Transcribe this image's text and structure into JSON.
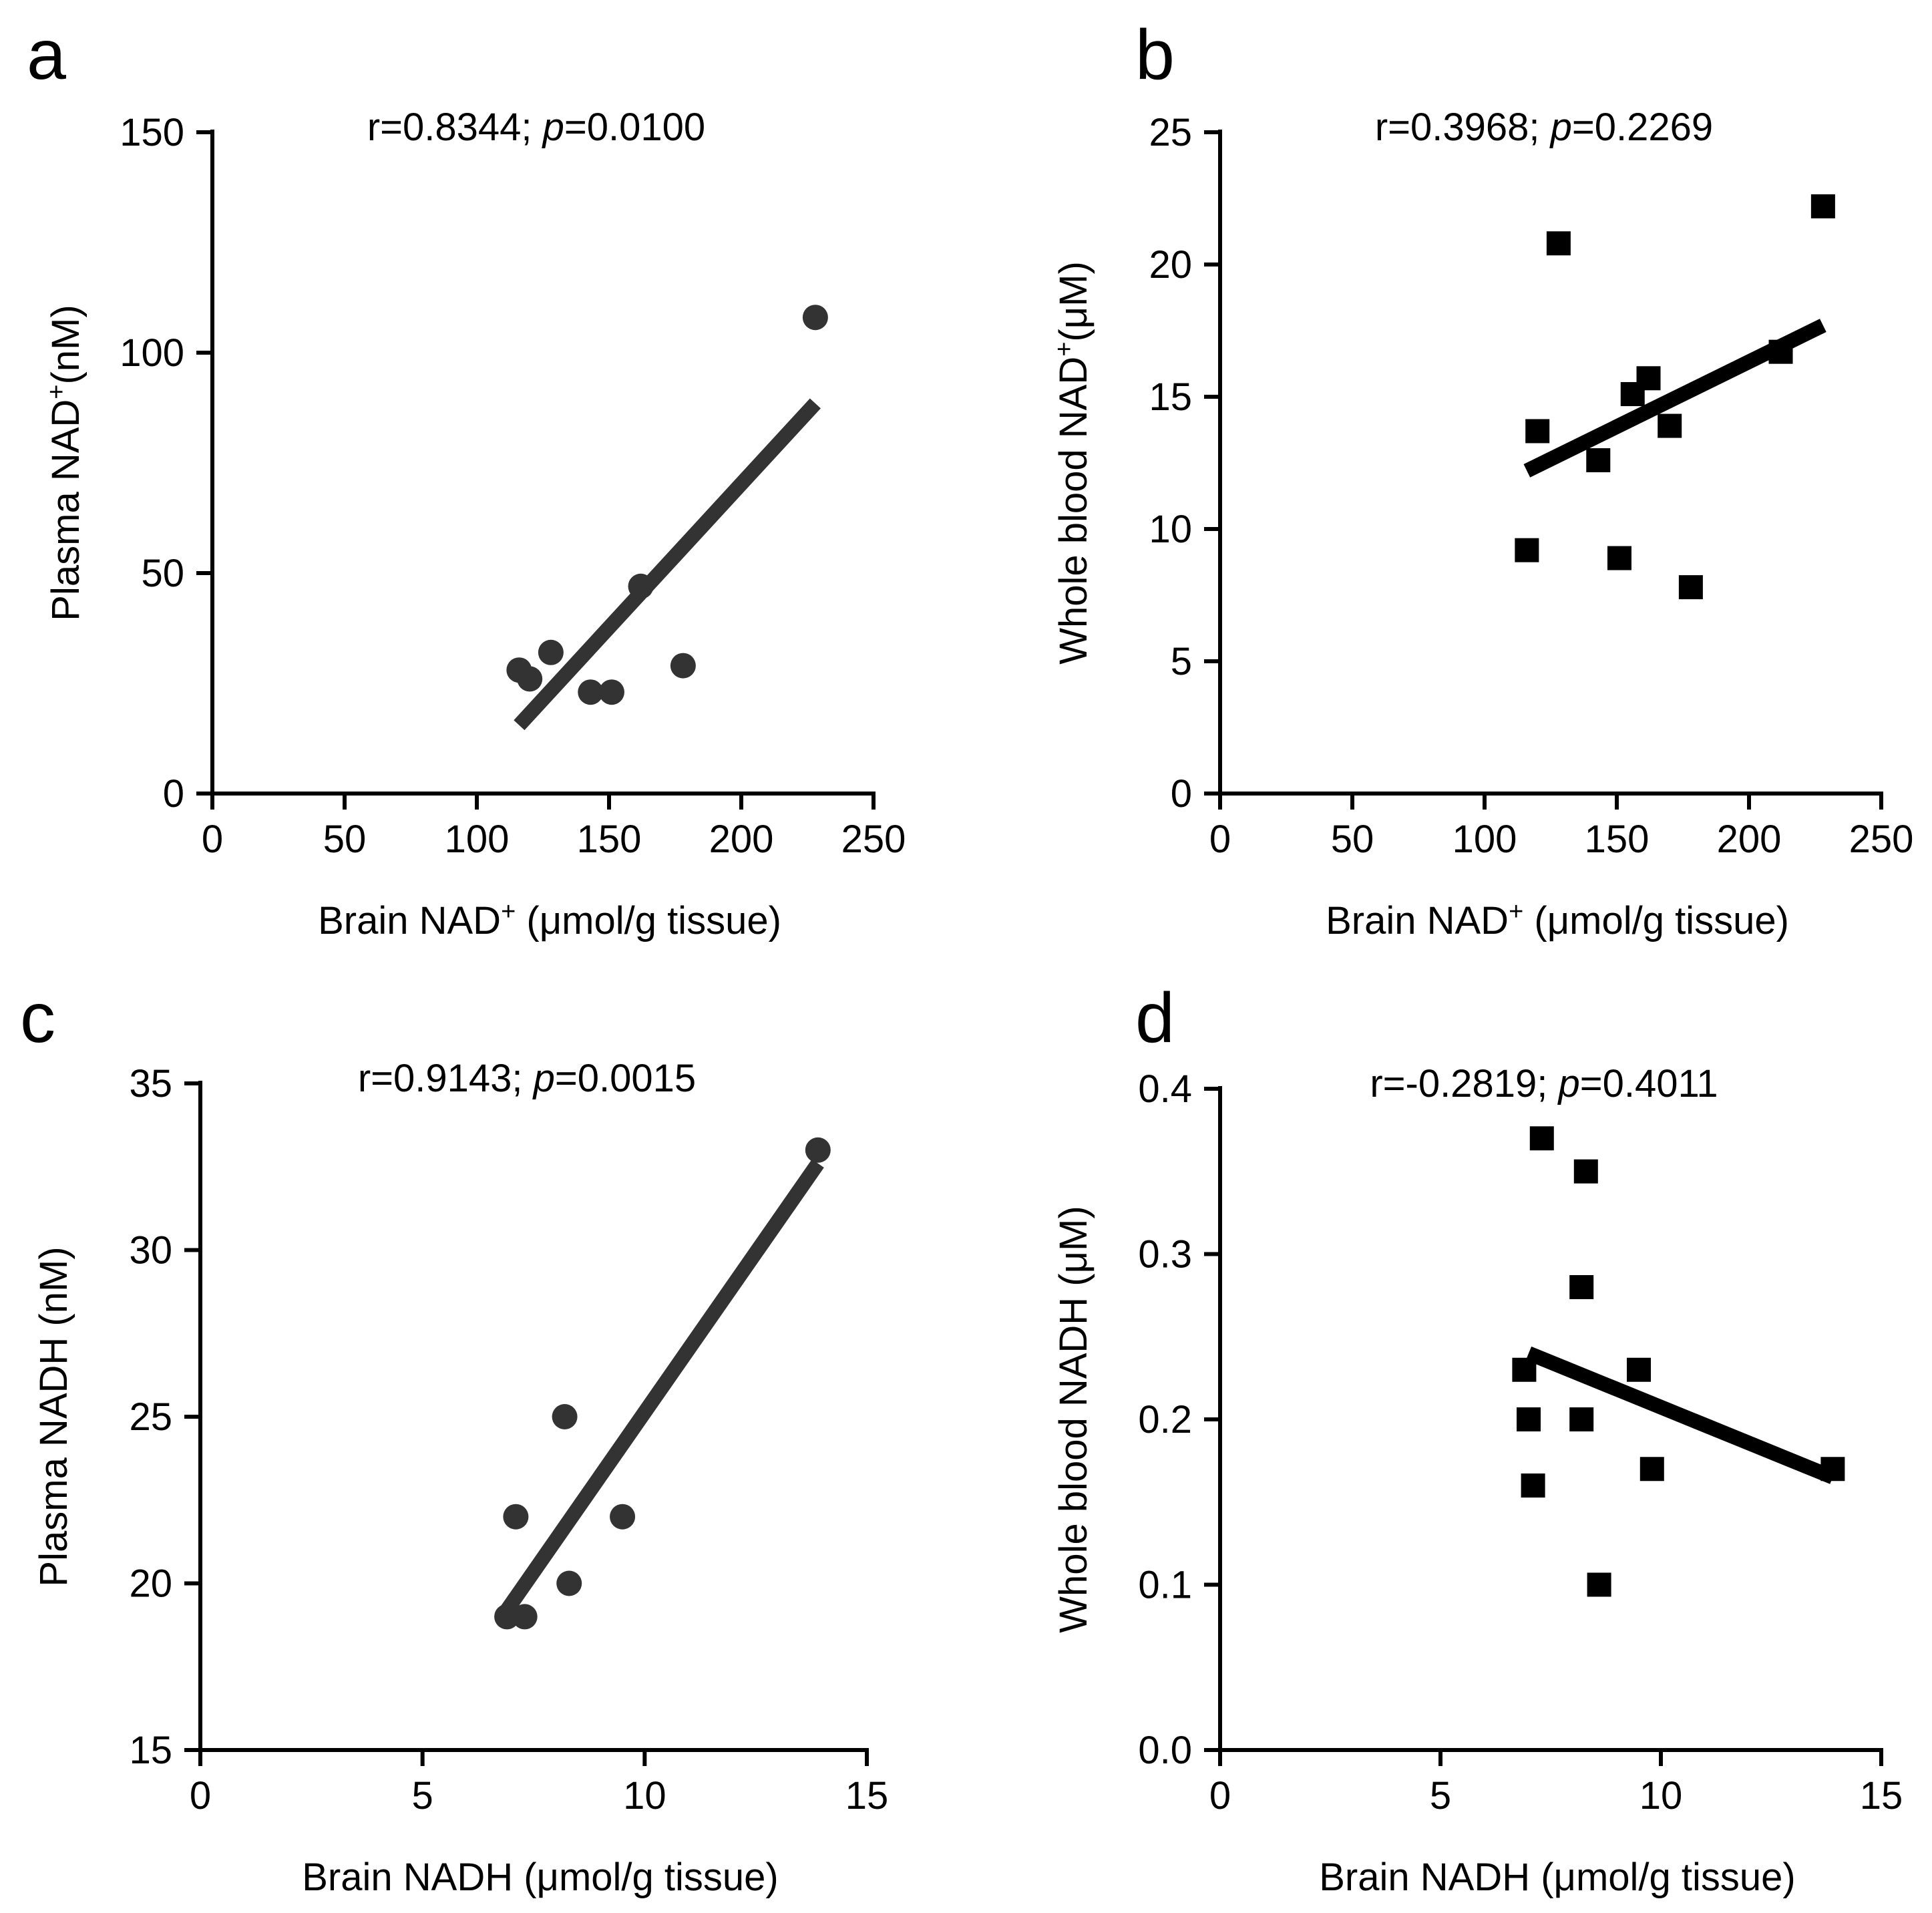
{
  "chart_data": [
    {
      "panel": "a",
      "type": "scatter",
      "marker": "circle",
      "color": "#333333",
      "stat": {
        "prefix": "r=0.8344; ",
        "p_label": "p",
        "suffix": "=0.0100"
      },
      "xlabel": {
        "pre": "Brain NAD",
        "sup": "+",
        "post": " (μmol/g tissue)"
      },
      "ylabel": {
        "pre": "Plasma NAD",
        "sup": "+",
        "post": "(nM)"
      },
      "xlim": [
        0,
        250
      ],
      "ylim": [
        0,
        150
      ],
      "xticks": [
        "0",
        "50",
        "100",
        "150",
        "200",
        "250"
      ],
      "yticks": [
        "0",
        "50",
        "100",
        "150"
      ],
      "points": [
        [
          116,
          28
        ],
        [
          120,
          26
        ],
        [
          128,
          32
        ],
        [
          143,
          23
        ],
        [
          151,
          23
        ],
        [
          162,
          47
        ],
        [
          178,
          29
        ],
        [
          228,
          108
        ]
      ],
      "fit": [
        [
          116,
          15.5
        ],
        [
          228,
          88.5
        ]
      ]
    },
    {
      "panel": "b",
      "type": "scatter",
      "marker": "square",
      "color": "#000000",
      "stat": {
        "prefix": "r=0.3968; ",
        "p_label": "p",
        "suffix": "=0.2269"
      },
      "xlabel": {
        "pre": "Brain NAD",
        "sup": "+",
        "post": " (μmol/g tissue)"
      },
      "ylabel": {
        "pre": "Whole blood NAD",
        "sup": "+",
        "post": "(μM)"
      },
      "xlim": [
        0,
        250
      ],
      "ylim": [
        0,
        25
      ],
      "xticks": [
        "0",
        "50",
        "100",
        "150",
        "200",
        "250"
      ],
      "yticks": [
        "0",
        "5",
        "10",
        "15",
        "20",
        "25"
      ],
      "points": [
        [
          116,
          9.2
        ],
        [
          120,
          13.7
        ],
        [
          128,
          20.8
        ],
        [
          143,
          12.6
        ],
        [
          151,
          8.9
        ],
        [
          156,
          15.1
        ],
        [
          162,
          15.7
        ],
        [
          170,
          13.9
        ],
        [
          178,
          7.8
        ],
        [
          212,
          16.7
        ],
        [
          228,
          22.2
        ]
      ],
      "fit": [
        [
          116,
          12.2
        ],
        [
          228,
          17.7
        ]
      ]
    },
    {
      "panel": "c",
      "type": "scatter",
      "marker": "circle",
      "color": "#333333",
      "stat": {
        "prefix": "r=0.9143; ",
        "p_label": "p",
        "suffix": "=0.0015"
      },
      "xlabel": {
        "pre": "Brain NADH (μmol/g tissue)",
        "sup": "",
        "post": ""
      },
      "ylabel": {
        "pre": "Plasma NADH (nM)",
        "sup": "",
        "post": ""
      },
      "xlim": [
        0,
        15
      ],
      "ylim": [
        15,
        35
      ],
      "xticks": [
        "0",
        "5",
        "10",
        "15"
      ],
      "yticks": [
        "15",
        "20",
        "25",
        "30",
        "35"
      ],
      "points": [
        [
          6.9,
          19
        ],
        [
          7.1,
          22
        ],
        [
          7.3,
          19
        ],
        [
          8.2,
          25
        ],
        [
          8.3,
          20
        ],
        [
          9.5,
          22
        ],
        [
          13.9,
          33
        ]
      ],
      "fit": [
        [
          6.9,
          19.2
        ],
        [
          13.9,
          32.6
        ]
      ]
    },
    {
      "panel": "d",
      "type": "scatter",
      "marker": "square",
      "color": "#000000",
      "stat": {
        "prefix": "r=-0.2819; ",
        "p_label": "p",
        "suffix": "=0.4011"
      },
      "xlabel": {
        "pre": "Brain NADH (μmol/g tissue)",
        "sup": "",
        "post": ""
      },
      "ylabel": {
        "pre": "Whole blood NADH (μM)",
        "sup": "",
        "post": ""
      },
      "xlim": [
        0,
        15
      ],
      "ylim": [
        0.0,
        0.4
      ],
      "xticks": [
        "0",
        "5",
        "10",
        "15"
      ],
      "yticks": [
        "0.0",
        "0.1",
        "0.2",
        "0.3",
        "0.4"
      ],
      "points": [
        [
          6.9,
          0.23
        ],
        [
          7.0,
          0.2
        ],
        [
          7.1,
          0.16
        ],
        [
          7.3,
          0.37
        ],
        [
          8.2,
          0.2
        ],
        [
          8.2,
          0.28
        ],
        [
          8.3,
          0.35
        ],
        [
          8.6,
          0.1
        ],
        [
          9.5,
          0.23
        ],
        [
          9.8,
          0.17
        ],
        [
          13.9,
          0.17
        ]
      ],
      "fit": [
        [
          7.0,
          0.24
        ],
        [
          13.9,
          0.165
        ]
      ]
    }
  ]
}
